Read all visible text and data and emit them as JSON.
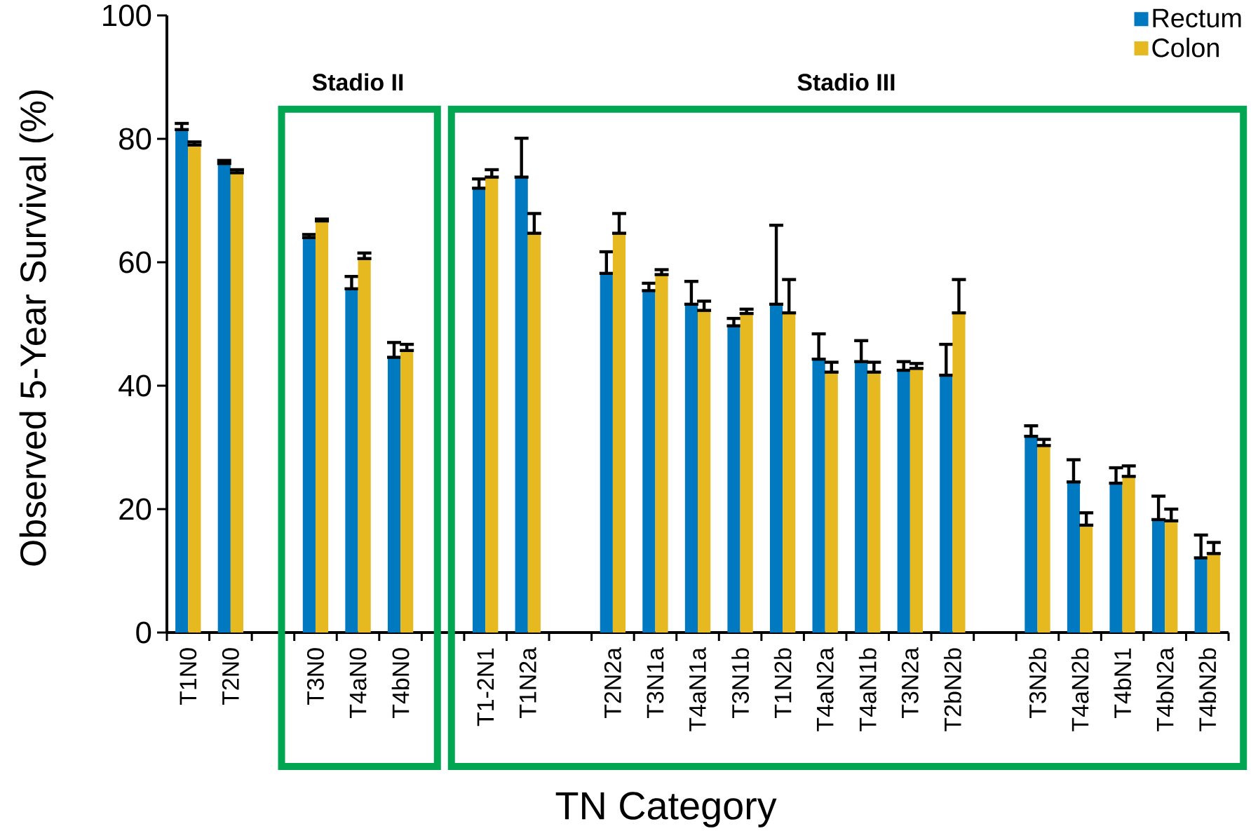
{
  "chart_data": {
    "type": "bar",
    "categories": [
      "T1N0",
      "T2N0",
      null,
      "T3N0",
      "T4aN0",
      "T4bN0",
      null,
      "T1-2N1",
      "T1N2a",
      null,
      "T2N2a",
      "T3N1a",
      "T4aN1a",
      "T3N1b",
      "T1N2b",
      "T4aN2a",
      "T4aN1b",
      "T3N2a",
      "T2bN2b",
      null,
      "T3N2b",
      "T4aN2b",
      "T4bN1",
      "T4bN2a",
      "T4bN2b"
    ],
    "series": [
      {
        "name": "Rectum",
        "color": "#0079c1",
        "values": [
          81.5,
          76,
          null,
          64,
          55.7,
          44.6,
          null,
          72,
          73.8,
          null,
          58.2,
          55.4,
          53.2,
          49.7,
          53.2,
          44.3,
          43.9,
          42.5,
          41.7,
          null,
          31.8,
          24.4,
          24.2,
          18.3,
          12.1
        ],
        "errors": [
          [
            81.5,
            82.5
          ],
          [
            76,
            76.5
          ],
          null,
          [
            64,
            64.5
          ],
          [
            55.7,
            57.7
          ],
          [
            44.6,
            47
          ],
          null,
          [
            72,
            73.5
          ],
          [
            73.8,
            80.1
          ],
          null,
          [
            58.2,
            61.7
          ],
          [
            55.4,
            56.6
          ],
          [
            53.2,
            56.9
          ],
          [
            49.7,
            50.9
          ],
          [
            53.2,
            66
          ],
          [
            44.3,
            48.4
          ],
          [
            43.9,
            47.3
          ],
          [
            42.5,
            43.9
          ],
          [
            41.7,
            46.7
          ],
          null,
          [
            31.8,
            33.5
          ],
          [
            24.4,
            28
          ],
          [
            24.2,
            26.7
          ],
          [
            18.3,
            22.1
          ],
          [
            12.1,
            15.8
          ]
        ]
      },
      {
        "name": "Colon",
        "color": "#e6b920",
        "values": [
          79,
          74.5,
          null,
          66.7,
          60.6,
          45.7,
          null,
          73.8,
          64.7,
          null,
          64.7,
          58,
          52.2,
          51.7,
          51.8,
          42.2,
          42.2,
          42.8,
          51.8,
          null,
          30.3,
          17.4,
          25.3,
          18.1,
          12.8
        ],
        "errors": [
          [
            79,
            79.5
          ],
          [
            74.5,
            75
          ],
          null,
          [
            66.7,
            67
          ],
          [
            60.6,
            61.5
          ],
          [
            45.7,
            46.7
          ],
          null,
          [
            73.8,
            75
          ],
          [
            64.7,
            67.9
          ],
          null,
          [
            64.7,
            67.9
          ],
          [
            58,
            58.8
          ],
          [
            52.2,
            53.7
          ],
          [
            51.7,
            52.4
          ],
          [
            51.8,
            57.2
          ],
          [
            42.2,
            43.8
          ],
          [
            42.2,
            43.8
          ],
          [
            42.8,
            43.6
          ],
          [
            51.8,
            57.2
          ],
          null,
          [
            30.3,
            31.3
          ],
          [
            17.4,
            19.4
          ],
          [
            25.3,
            27
          ],
          [
            18.1,
            20
          ],
          [
            12.8,
            14.6
          ]
        ]
      }
    ],
    "xlabel": "TN Category",
    "ylabel": "Observed 5-Year Survival (%)",
    "ylim": [
      0,
      100
    ],
    "yticks": [
      0,
      20,
      40,
      60,
      80,
      100
    ],
    "legend": "top right",
    "annotations": [
      "Stadio II",
      "Stadio III"
    ]
  }
}
